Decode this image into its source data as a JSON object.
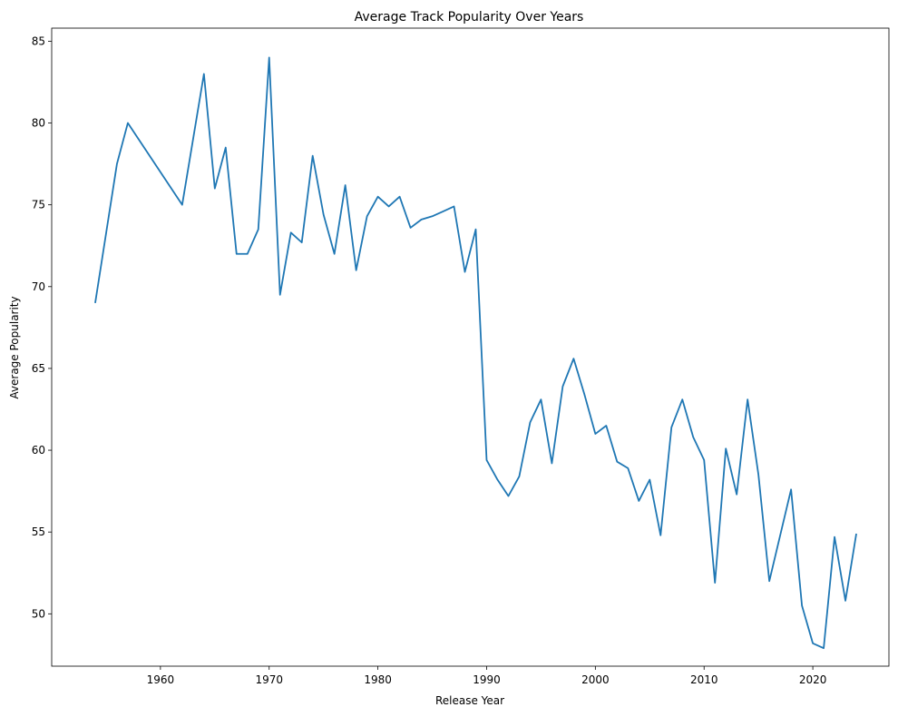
{
  "chart_data": {
    "type": "line",
    "title": "Average Track Popularity Over Years",
    "xlabel": "Release Year",
    "ylabel": "Average Popularity",
    "xlim": [
      1950,
      2027
    ],
    "ylim": [
      46.8,
      85.8
    ],
    "xticks": [
      1960,
      1970,
      1980,
      1990,
      2000,
      2010,
      2020
    ],
    "yticks": [
      50,
      55,
      60,
      65,
      70,
      75,
      80,
      85
    ],
    "grid": false,
    "line_color": "#1f77b4",
    "series": [
      {
        "x": [
          1954,
          1956,
          1957,
          1962,
          1964,
          1965,
          1966,
          1967,
          1968,
          1969,
          1970,
          1971,
          1972,
          1973,
          1974,
          1975,
          1976,
          1977,
          1978,
          1979,
          1980,
          1981,
          1982,
          1983,
          1984,
          1985,
          1986,
          1987,
          1988,
          1989,
          1990,
          1991,
          1992,
          1993,
          1994,
          1995,
          1996,
          1997,
          1998,
          1999,
          2000,
          2001,
          2002,
          2003,
          2004,
          2005,
          2006,
          2007,
          2008,
          2009,
          2010,
          2011,
          2012,
          2013,
          2014,
          2015,
          2016,
          2017,
          2018,
          2019,
          2020,
          2021,
          2022,
          2023,
          2024
        ],
        "values": [
          69.0,
          77.5,
          80.0,
          75.0,
          83.0,
          76.0,
          78.5,
          72.0,
          72.0,
          73.5,
          84.0,
          69.5,
          73.3,
          72.7,
          78.0,
          74.4,
          72.0,
          76.2,
          71.0,
          74.3,
          75.5,
          74.9,
          75.5,
          73.6,
          74.1,
          74.3,
          74.6,
          74.9,
          70.9,
          73.5,
          59.4,
          58.2,
          57.2,
          58.4,
          61.7,
          63.1,
          59.2,
          63.9,
          65.6,
          63.4,
          61.0,
          61.5,
          59.3,
          58.9,
          56.9,
          58.2,
          54.8,
          61.4,
          63.1,
          60.8,
          59.4,
          51.9,
          60.1,
          57.3,
          63.1,
          58.5,
          52.0,
          54.8,
          57.6,
          50.5,
          48.2,
          47.9,
          54.7,
          50.8,
          54.9
        ]
      }
    ]
  }
}
